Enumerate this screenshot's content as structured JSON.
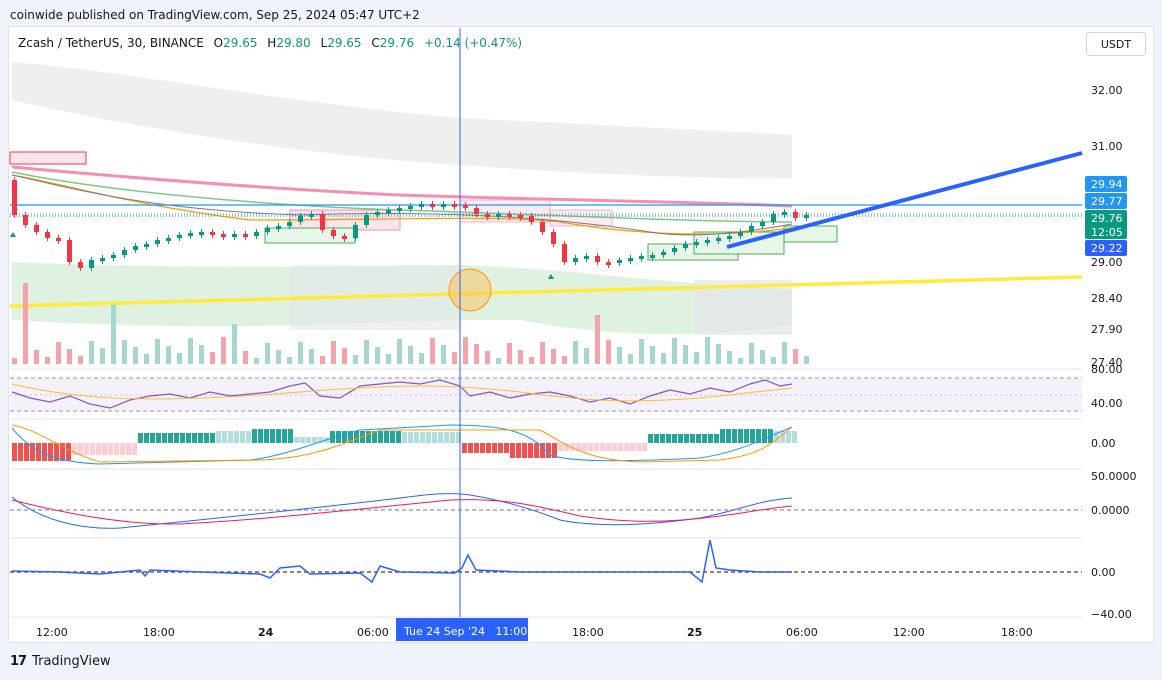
{
  "header": {
    "published": "coinwide published on TradingView.com, Sep 25, 2024 05:47 UTC+2"
  },
  "legend": {
    "symbol": "Zcash / TetherUS, 30, BINANCE",
    "open_label": "O",
    "open": "29.65",
    "high_label": "H",
    "high": "29.80",
    "low_label": "L",
    "low": "29.65",
    "close_label": "C",
    "close": "29.76",
    "change": "+0.14 (+0.47%)"
  },
  "currency_button": "USDT",
  "footer": {
    "brand": "TradingView",
    "logo": "17"
  },
  "crosshair_label": "Tue 24 Sep '24   11:00",
  "price_badges": {
    "b1": "29.94",
    "b2": "29.77",
    "b3": "29.76",
    "b3_sub": "12:05",
    "b4": "29.22"
  },
  "colors": {
    "up": "#089981",
    "down": "#f23645",
    "trend": "#2962ff",
    "yellow": "#ffeb3b",
    "pink": "#f48fb1"
  },
  "chart_data": {
    "type": "candlestick",
    "price_axis": [
      "32.00",
      "31.00",
      "29.00",
      "28.40",
      "27.90",
      "27.40"
    ],
    "time_axis": [
      "12:00",
      "18:00",
      "24",
      "06:00",
      "18:00",
      "25",
      "06:00",
      "12:00",
      "18:00"
    ],
    "osc1_axis": [
      "80.00",
      "40.00"
    ],
    "osc2_axis": [
      "0.00"
    ],
    "osc3_axis": [
      "50.0000",
      "0.0000"
    ],
    "osc4_axis": [
      "0.00",
      "−40.00"
    ]
  }
}
